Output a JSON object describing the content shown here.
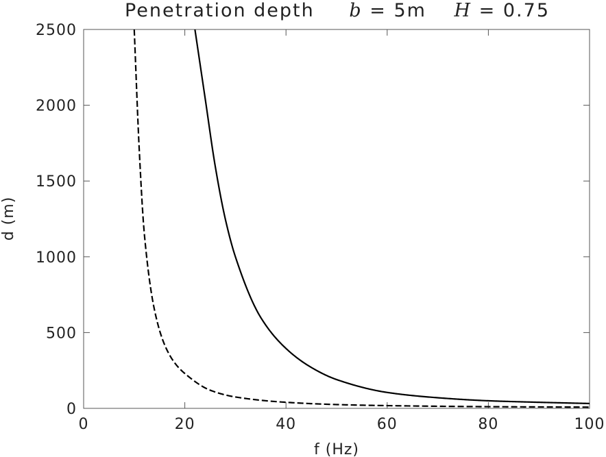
{
  "chart_data": {
    "type": "line",
    "title": {
      "prefix": "Penetration depth",
      "b_symbol": "b",
      "b_value": " = 5m",
      "h_symbol": "H",
      "h_value": " = 0.75"
    },
    "xlabel": "f (Hz)",
    "ylabel": "d (m)",
    "xlim": [
      0,
      100
    ],
    "ylim": [
      0,
      2500
    ],
    "xticks": [
      "0",
      "20",
      "40",
      "60",
      "80",
      "100"
    ],
    "yticks": [
      "0",
      "500",
      "1000",
      "1500",
      "2000",
      "2500"
    ],
    "grid": false,
    "legend": "none",
    "series": [
      {
        "name": "solid curve",
        "style": "solid",
        "color": "#000000",
        "x": [
          22,
          24,
          26,
          28,
          30,
          35,
          40,
          45,
          50,
          60,
          70,
          80,
          90,
          100
        ],
        "y": [
          2500,
          2050,
          1600,
          1250,
          1000,
          600,
          395,
          270,
          190,
          105,
          70,
          50,
          40,
          32
        ]
      },
      {
        "name": "dashed curve",
        "style": "dashed",
        "color": "#000000",
        "x": [
          10,
          11,
          12,
          14,
          16,
          18,
          20,
          25,
          30,
          40,
          50,
          60,
          80,
          100
        ],
        "y": [
          2500,
          1700,
          1150,
          650,
          420,
          300,
          230,
          120,
          75,
          40,
          25,
          18,
          11,
          8
        ]
      }
    ]
  }
}
